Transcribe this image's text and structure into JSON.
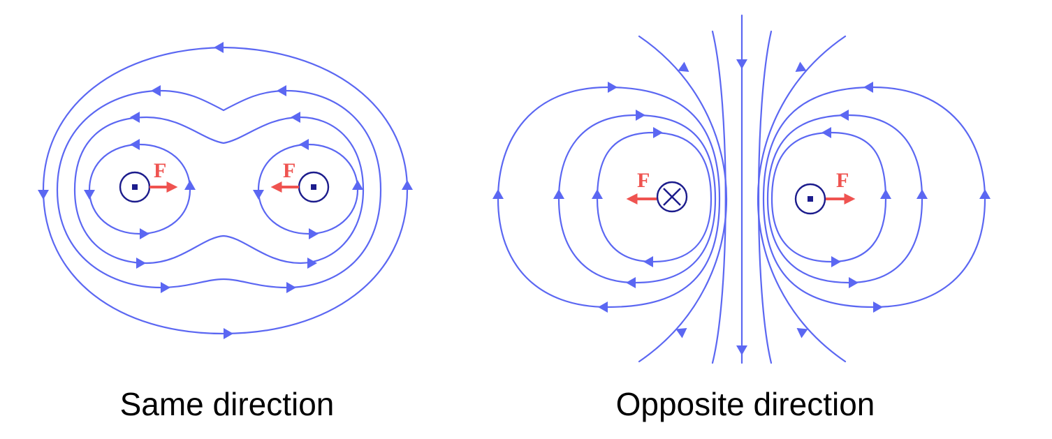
{
  "colors": {
    "field_line": "#5b67f2",
    "wire": "#1c1c8c",
    "force": "#ef5350",
    "caption": "#000000"
  },
  "left_panel": {
    "caption": "Same direction",
    "force_label": "F",
    "wires": [
      "current-out-of-page",
      "current-out-of-page"
    ]
  },
  "right_panel": {
    "caption": "Opposite direction",
    "force_label": "F",
    "wires": [
      "current-into-page",
      "current-out-of-page"
    ]
  }
}
